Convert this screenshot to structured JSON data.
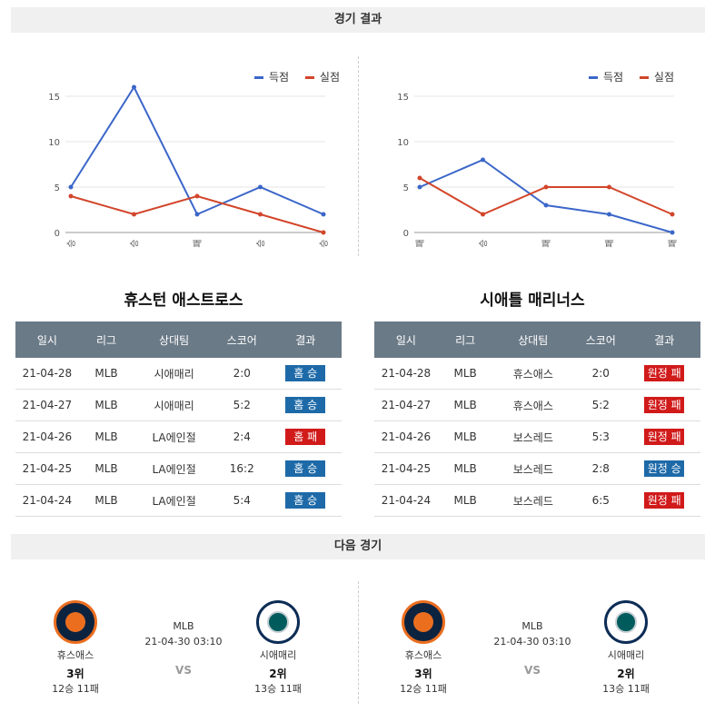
{
  "header": {
    "title": "경기 결과",
    "next_title": "다음 경기"
  },
  "legend": {
    "scored": "득점",
    "allowed": "실점",
    "scored_color": "#3b66c9",
    "allowed_color": "#d2452a"
  },
  "chart_data": [
    {
      "type": "line",
      "categories": [
        "승",
        "승",
        "패",
        "승",
        "승"
      ],
      "ylim": [
        0,
        15
      ],
      "yticks": [
        0,
        5,
        10,
        15
      ],
      "series": [
        {
          "name": "득점",
          "values": [
            5,
            16,
            2,
            5,
            2
          ]
        },
        {
          "name": "실점",
          "values": [
            4,
            2,
            4,
            2,
            0
          ]
        }
      ]
    },
    {
      "type": "line",
      "categories": [
        "패",
        "승",
        "패",
        "패",
        "패"
      ],
      "ylim": [
        0,
        15
      ],
      "yticks": [
        0,
        5,
        10,
        15
      ],
      "series": [
        {
          "name": "득점",
          "values": [
            5,
            8,
            3,
            2,
            0
          ]
        },
        {
          "name": "실점",
          "values": [
            6,
            2,
            5,
            5,
            2
          ]
        }
      ]
    }
  ],
  "teams": [
    {
      "title": "휴스턴 애스트로스",
      "headers": [
        "일시",
        "리그",
        "상대팀",
        "스코어",
        "결과"
      ],
      "rows": [
        {
          "date": "21-04-28",
          "league": "MLB",
          "opp": "시애매리",
          "score": "2:0",
          "result": "홈 승",
          "color": "blue"
        },
        {
          "date": "21-04-27",
          "league": "MLB",
          "opp": "시애매리",
          "score": "5:2",
          "result": "홈 승",
          "color": "blue"
        },
        {
          "date": "21-04-26",
          "league": "MLB",
          "opp": "LA에인절",
          "score": "2:4",
          "result": "홈 패",
          "color": "red"
        },
        {
          "date": "21-04-25",
          "league": "MLB",
          "opp": "LA에인절",
          "score": "16:2",
          "result": "홈 승",
          "color": "blue"
        },
        {
          "date": "21-04-24",
          "league": "MLB",
          "opp": "LA에인절",
          "score": "5:4",
          "result": "홈 승",
          "color": "blue"
        }
      ]
    },
    {
      "title": "시애틀 매리너스",
      "headers": [
        "일시",
        "리그",
        "상대팀",
        "스코어",
        "결과"
      ],
      "rows": [
        {
          "date": "21-04-28",
          "league": "MLB",
          "opp": "휴스애스",
          "score": "2:0",
          "result": "원정 패",
          "color": "red"
        },
        {
          "date": "21-04-27",
          "league": "MLB",
          "opp": "휴스애스",
          "score": "5:2",
          "result": "원정 패",
          "color": "red"
        },
        {
          "date": "21-04-26",
          "league": "MLB",
          "opp": "보스레드",
          "score": "5:3",
          "result": "원정 패",
          "color": "red"
        },
        {
          "date": "21-04-25",
          "league": "MLB",
          "opp": "보스레드",
          "score": "2:8",
          "result": "원정 승",
          "color": "blue"
        },
        {
          "date": "21-04-24",
          "league": "MLB",
          "opp": "보스레드",
          "score": "6:5",
          "result": "원정 패",
          "color": "red"
        }
      ]
    }
  ],
  "next_games": [
    {
      "league": "MLB",
      "datetime": "21-04-30 03:10",
      "vs": "VS",
      "home": {
        "name": "휴스애스",
        "rank": "3위",
        "record": "12승 11패",
        "logo": "astros-logo"
      },
      "away": {
        "name": "시애매리",
        "rank": "2위",
        "record": "13승 11패",
        "logo": "mariners-logo"
      }
    },
    {
      "league": "MLB",
      "datetime": "21-04-30 03:10",
      "vs": "VS",
      "home": {
        "name": "휴스애스",
        "rank": "3위",
        "record": "12승 11패",
        "logo": "astros-logo"
      },
      "away": {
        "name": "시애매리",
        "rank": "2위",
        "record": "13승 11패",
        "logo": "mariners-logo"
      }
    }
  ]
}
